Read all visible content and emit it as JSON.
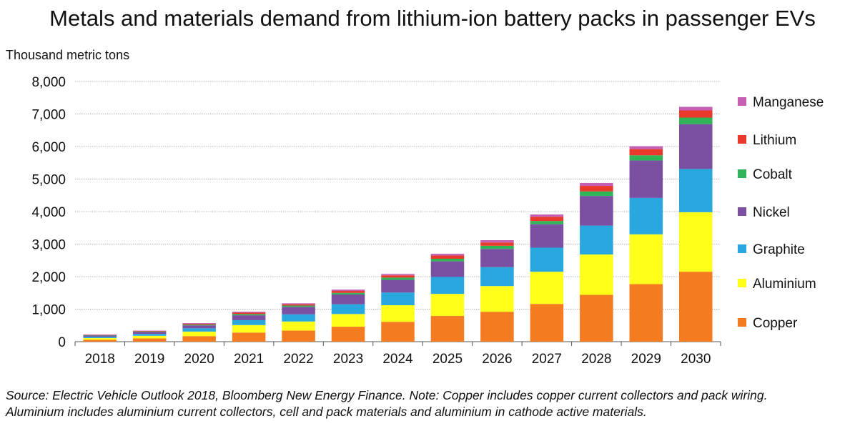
{
  "title": "Metals and materials demand from lithium-ion battery packs in passenger EVs",
  "source": {
    "line1": "Source: Electric Vehicle Outlook 2018, Bloomberg New Energy Finance. Note: Copper includes copper current collectors and pack wiring.",
    "line2": "Aluminium includes aluminium current collectors, cell and pack materials and aluminium in cathode active materials."
  },
  "chart_data": {
    "type": "bar",
    "stacked": true,
    "ylabel": "Thousand metric tons",
    "ylim": [
      0,
      8000
    ],
    "yticks": [
      0,
      1000,
      2000,
      3000,
      4000,
      5000,
      6000,
      7000,
      8000
    ],
    "ytick_labels": [
      "0",
      "1,000",
      "2,000",
      "3,000",
      "4,000",
      "5,000",
      "6,000",
      "7,000",
      "8,000"
    ],
    "grid": true,
    "legend_position": "right",
    "categories": [
      "2018",
      "2019",
      "2020",
      "2021",
      "2022",
      "2023",
      "2024",
      "2025",
      "2026",
      "2027",
      "2028",
      "2029",
      "2030"
    ],
    "series": [
      {
        "name": "Copper",
        "color": "#f47b20",
        "values": [
          60,
          100,
          170,
          280,
          340,
          460,
          610,
          790,
          920,
          1160,
          1440,
          1770,
          2150
        ]
      },
      {
        "name": "Aluminium",
        "color": "#ffff1a",
        "values": [
          50,
          80,
          140,
          230,
          280,
          390,
          510,
          680,
          790,
          990,
          1240,
          1530,
          1830
        ]
      },
      {
        "name": "Graphite",
        "color": "#29a8e0",
        "values": [
          40,
          60,
          100,
          150,
          220,
          300,
          390,
          520,
          580,
          740,
          890,
          1120,
          1330
        ]
      },
      {
        "name": "Nickel",
        "color": "#7b4fa2",
        "values": [
          40,
          60,
          90,
          150,
          230,
          300,
          390,
          480,
          560,
          720,
          910,
          1150,
          1380
        ]
      },
      {
        "name": "Cobalt",
        "color": "#2fb457",
        "values": [
          10,
          15,
          25,
          40,
          40,
          50,
          70,
          80,
          100,
          100,
          140,
          160,
          200
        ]
      },
      {
        "name": "Lithium",
        "color": "#e8392a",
        "values": [
          10,
          15,
          25,
          40,
          40,
          60,
          70,
          100,
          100,
          130,
          170,
          190,
          220
        ]
      },
      {
        "name": "Manganese",
        "color": "#c45fb3",
        "values": [
          10,
          10,
          20,
          30,
          30,
          40,
          40,
          50,
          70,
          70,
          90,
          90,
          110
        ]
      }
    ]
  }
}
